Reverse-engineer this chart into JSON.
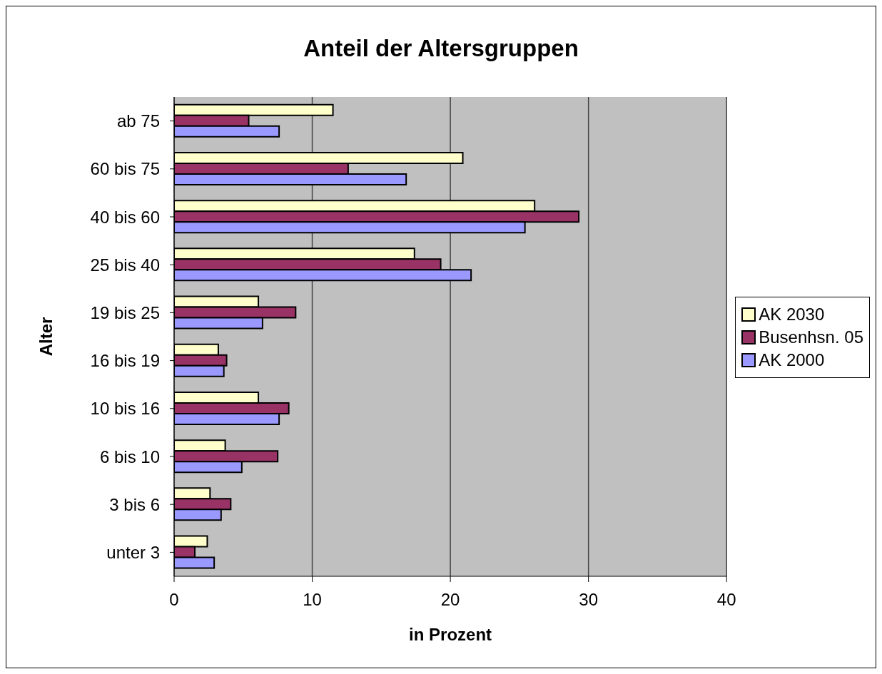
{
  "chart_data": {
    "type": "bar",
    "orientation": "horizontal",
    "title": "Anteil der Altersgruppen",
    "xlabel": "in Prozent",
    "ylabel": "Alter",
    "categories": [
      "ab 75",
      "60 bis 75",
      "40 bis 60",
      "25 bis 40",
      "19 bis 25",
      "16 bis 19",
      "10 bis 16",
      "6 bis 10",
      "3 bis 6",
      "unter 3"
    ],
    "series": [
      {
        "name": "AK 2030",
        "color": "#ffffcc",
        "values": [
          11.5,
          20.9,
          26.1,
          17.4,
          6.1,
          3.2,
          6.1,
          3.7,
          2.6,
          2.4
        ]
      },
      {
        "name": "Busenhsn. 05",
        "color": "#993366",
        "values": [
          5.4,
          12.6,
          29.3,
          19.3,
          8.8,
          3.8,
          8.3,
          7.5,
          4.1,
          1.5
        ]
      },
      {
        "name": "AK 2000",
        "color": "#9999ff",
        "values": [
          7.6,
          16.8,
          25.4,
          21.5,
          6.4,
          3.6,
          7.6,
          4.9,
          3.4,
          2.9
        ]
      }
    ],
    "xlim": [
      0,
      40
    ],
    "xticks": [
      0,
      10,
      20,
      30,
      40
    ],
    "grid": "x",
    "legend": "right"
  }
}
